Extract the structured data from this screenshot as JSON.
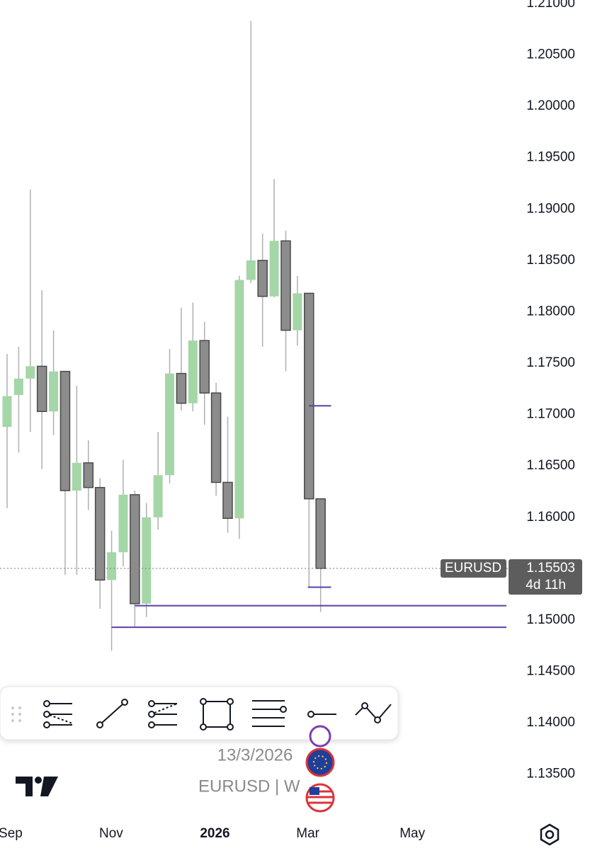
{
  "chart_data": {
    "type": "candlestick",
    "symbol": "EURUSD",
    "legend": "EURUSD | W",
    "date": "13/3/2026",
    "countdown": "4d 11h",
    "last_price": 1.15503,
    "up_color": "#a5d6a7",
    "down_color": "#8c8c8c",
    "line_color": "#5b3fa8",
    "open": [
      1.1688,
      1.1719,
      1.1735,
      1.1747,
      1.1703,
      1.1742,
      1.1626,
      1.1653,
      1.1629,
      1.1539,
      1.1566,
      1.1622,
      1.1516,
      1.16,
      1.1641,
      1.174,
      1.1711,
      1.1772,
      1.1721,
      1.1634,
      1.1599,
      1.1831,
      1.185,
      1.1815,
      1.1869,
      1.1782,
      1.1818,
      1.1618
    ],
    "high": [
      1.1759,
      1.1766,
      1.1919,
      1.1821,
      1.1782,
      1.1742,
      1.1728,
      1.1675,
      1.1638,
      1.1587,
      1.1656,
      1.1626,
      1.1614,
      1.1683,
      1.1764,
      1.1804,
      1.1809,
      1.179,
      1.1731,
      1.1698,
      1.1835,
      1.2083,
      1.1876,
      1.1929,
      1.1879,
      1.1835,
      1.1818,
      1.1618
    ],
    "low": [
      1.1609,
      1.1663,
      1.1683,
      1.1647,
      1.168,
      1.1544,
      1.1544,
      1.1607,
      1.1511,
      1.147,
      1.1552,
      1.1493,
      1.1503,
      1.1588,
      1.1633,
      1.1704,
      1.1703,
      1.169,
      1.1621,
      1.1585,
      1.1579,
      1.1828,
      1.1766,
      1.1814,
      1.1742,
      1.1767,
      1.1532,
      1.1508
    ],
    "close": [
      1.1718,
      1.1735,
      1.1747,
      1.1703,
      1.1742,
      1.1626,
      1.1653,
      1.1629,
      1.1539,
      1.1566,
      1.1622,
      1.1516,
      1.16,
      1.1641,
      1.174,
      1.1711,
      1.1772,
      1.1721,
      1.1634,
      1.1599,
      1.1831,
      1.185,
      1.1815,
      1.1869,
      1.1782,
      1.1818,
      1.1618,
      1.15503
    ],
    "drawings": [
      {
        "value": 1.17085,
        "from": 26,
        "to": 27.9
      },
      {
        "value": 1.1532,
        "from": 25.9,
        "to": 27.9
      },
      {
        "value": 1.1514,
        "from": 11,
        "to": 43
      },
      {
        "value": 1.1493,
        "from": 9,
        "to": 43
      }
    ],
    "xlim": [
      -0.61,
      43
    ],
    "ylim": [
      1.12768,
      1.21034
    ],
    "xticks": [
      {
        "value": 0.3,
        "label": "Sep"
      },
      {
        "value": 8.96,
        "label": "Nov"
      },
      {
        "value": 17.9,
        "label": "2026"
      },
      {
        "value": 25.9,
        "label": "Mar"
      },
      {
        "value": 34.9,
        "label": "May"
      }
    ],
    "yticks": [
      {
        "value": 1.21,
        "label": "1.21000"
      },
      {
        "value": 1.205,
        "label": "1.20500"
      },
      {
        "value": 1.2,
        "label": "1.20000"
      },
      {
        "value": 1.195,
        "label": "1.19500"
      },
      {
        "value": 1.19,
        "label": "1.19000"
      },
      {
        "value": 1.185,
        "label": "1.18500"
      },
      {
        "value": 1.18,
        "label": "1.18000"
      },
      {
        "value": 1.175,
        "label": "1.17500"
      },
      {
        "value": 1.17,
        "label": "1.17000"
      },
      {
        "value": 1.165,
        "label": "1.16500"
      },
      {
        "value": 1.16,
        "label": "1.16000"
      },
      {
        "value": 1.155,
        "label": "1.15500"
      },
      {
        "value": 1.15,
        "label": "1.15000"
      },
      {
        "value": 1.145,
        "label": "1.14500"
      },
      {
        "value": 1.14,
        "label": "1.14000"
      },
      {
        "value": 1.135,
        "label": "1.13500"
      }
    ]
  }
}
